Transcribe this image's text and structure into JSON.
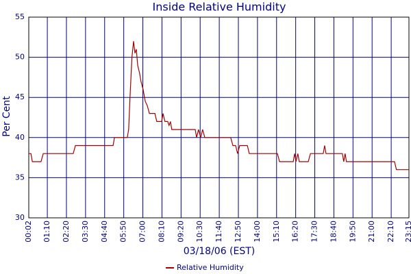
{
  "chart_data": {
    "type": "line",
    "title": "Inside Relative Humidity",
    "x_label": "03/18/06 (EST)",
    "y_label": "Per Cent",
    "x": [
      "00:02",
      "00:10",
      "00:15",
      "00:47",
      "00:55",
      "02:45",
      "02:53",
      "05:11",
      "05:16",
      "06:03",
      "06:08",
      "06:13",
      "06:20",
      "06:26",
      "06:31",
      "06:36",
      "06:41",
      "06:48",
      "06:53",
      "07:01",
      "07:09",
      "07:16",
      "07:24",
      "07:44",
      "07:51",
      "08:09",
      "08:14",
      "08:21",
      "08:31",
      "08:36",
      "08:41",
      "08:46",
      "10:12",
      "10:17",
      "10:24",
      "10:32",
      "10:39",
      "10:47",
      "12:22",
      "12:30",
      "12:40",
      "12:47",
      "12:55",
      "13:23",
      "13:30",
      "15:13",
      "15:21",
      "16:11",
      "16:16",
      "16:21",
      "16:28",
      "16:33",
      "17:06",
      "17:14",
      "18:01",
      "18:06",
      "18:11",
      "19:11",
      "19:16",
      "19:21",
      "19:26",
      "22:22",
      "22:29",
      "23:15"
    ],
    "series": [
      {
        "name": "Relative Humidity",
        "color": "#a00000",
        "values": [
          38,
          38,
          37,
          37,
          38,
          38,
          39,
          39,
          40,
          40,
          41,
          45,
          50,
          52,
          50.5,
          51,
          49,
          48,
          47,
          46,
          44.5,
          44,
          43,
          43,
          42,
          42,
          43,
          42,
          42,
          41.5,
          42,
          41,
          41,
          40,
          41,
          40,
          41,
          40,
          40,
          39,
          39,
          38,
          39,
          39,
          38,
          38,
          37,
          37,
          38,
          37,
          38,
          37,
          37,
          38,
          38,
          39,
          38,
          38,
          37,
          38,
          37,
          37,
          36,
          36
        ]
      }
    ],
    "xlim": [
      "00:02",
      "23:15"
    ],
    "xticks": [
      "00:02",
      "01:10",
      "02:20",
      "03:30",
      "04:40",
      "05:50",
      "07:00",
      "08:10",
      "09:20",
      "10:30",
      "11:40",
      "12:50",
      "14:00",
      "15:10",
      "16:20",
      "17:30",
      "18:40",
      "19:50",
      "21:00",
      "22:10",
      "23:15"
    ],
    "ylim": [
      30,
      55
    ],
    "yticks": [
      30,
      35,
      40,
      45,
      50,
      55
    ],
    "grid": true,
    "legend": "bottom"
  }
}
